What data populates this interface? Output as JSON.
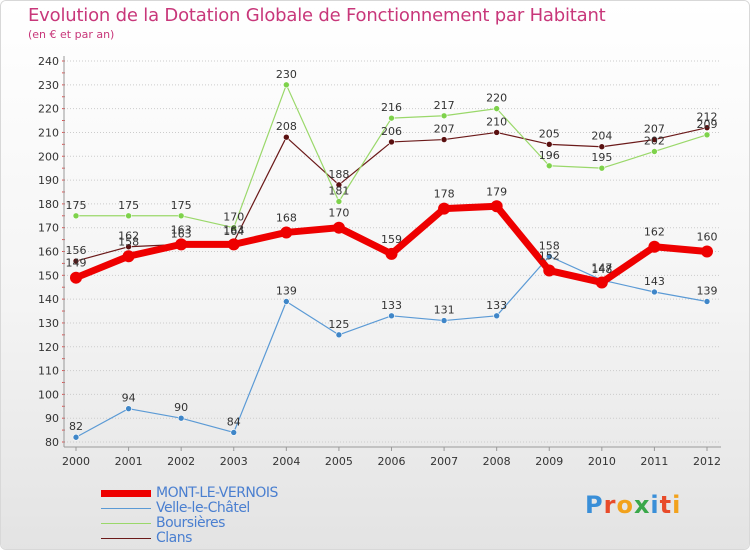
{
  "header": {
    "title": "Evolution de la Dotation Globale de Fonctionnement par Habitant",
    "subtitle": "(en € et par an)"
  },
  "logo": {
    "text": "Proxiti",
    "colors": [
      "#3a8fd8",
      "#e84b2a",
      "#f2a21c",
      "#3aa84a",
      "#3a8fd8",
      "#e84b2a",
      "#f2a21c"
    ]
  },
  "colors": {
    "title": "#c8377a",
    "axis_text": "#333333",
    "grid": "#cccccc",
    "background_top": "#ffffff",
    "background_bottom": "#e6e6e6"
  },
  "chart_data": {
    "type": "line",
    "title": "Evolution de la Dotation Globale de Fonctionnement par Habitant",
    "subtitle": "(en € et par an)",
    "x": [
      "2000",
      "2001",
      "2002",
      "2003",
      "2004",
      "2005",
      "2006",
      "2007",
      "2008",
      "2009",
      "2010",
      "2011",
      "2012"
    ],
    "ylim": [
      80,
      240
    ],
    "yticks": [
      80,
      90,
      100,
      110,
      120,
      130,
      140,
      150,
      160,
      170,
      180,
      190,
      200,
      210,
      220,
      230,
      240
    ],
    "grid": "horizontal",
    "legend": "bottom-left",
    "series": [
      {
        "name": "Clans",
        "values": [
          156,
          162,
          163,
          164,
          208,
          188,
          206,
          207,
          210,
          205,
          204,
          207,
          212
        ],
        "color": "#6b1a1a",
        "marker_color": "#5a1010",
        "width": 1.2
      },
      {
        "name": "Boursières",
        "values": [
          175,
          175,
          175,
          170,
          230,
          181,
          216,
          217,
          220,
          196,
          195,
          202,
          209
        ],
        "color": "#9ad86a",
        "marker_color": "#7ed24b",
        "width": 1.2
      },
      {
        "name": "Velle-le-Châtel",
        "values": [
          82,
          94,
          90,
          84,
          139,
          125,
          133,
          131,
          133,
          158,
          148,
          143,
          139
        ],
        "color": "#5b9ad5",
        "marker_color": "#3f86c8",
        "width": 1.2
      },
      {
        "name": "MONT-LE-VERNOIS",
        "values": [
          149,
          158,
          163,
          163,
          168,
          170,
          159,
          178,
          179,
          152,
          147,
          162,
          160
        ],
        "color": "#ee0000",
        "marker_color": "#ee0000",
        "width": 7
      }
    ],
    "data_labels": [
      {
        "x": "2000",
        "text": "156",
        "series": "Clans"
      },
      {
        "x": "2001",
        "text": "162",
        "series": "Clans"
      },
      {
        "x": "2002",
        "text": "163",
        "series": "Clans"
      },
      {
        "x": "2003",
        "text": "164",
        "series": "Clans"
      },
      {
        "x": "2004",
        "text": "208",
        "series": "Clans"
      },
      {
        "x": "2005",
        "text": "188",
        "series": "Clans"
      },
      {
        "x": "2006",
        "text": "206",
        "series": "Clans"
      },
      {
        "x": "2007",
        "text": "207",
        "series": "Clans"
      },
      {
        "x": "2008",
        "text": "210",
        "series": "Clans"
      },
      {
        "x": "2009",
        "text": "205",
        "series": "Clans"
      },
      {
        "x": "2010",
        "text": "204",
        "series": "Clans"
      },
      {
        "x": "2011",
        "text": "207",
        "series": "Clans"
      },
      {
        "x": "2012",
        "text": "212",
        "series": "Clans"
      },
      {
        "x": "2000",
        "text": "175",
        "series": "Boursières"
      },
      {
        "x": "2001",
        "text": "175",
        "series": "Boursières"
      },
      {
        "x": "2002",
        "text": "175",
        "series": "Boursières"
      },
      {
        "x": "2003",
        "text": "170",
        "series": "Boursières"
      },
      {
        "x": "2004",
        "text": "230",
        "series": "Boursières"
      },
      {
        "x": "2005",
        "text": "181",
        "series": "Boursières"
      },
      {
        "x": "2006",
        "text": "216",
        "series": "Boursières"
      },
      {
        "x": "2007",
        "text": "217",
        "series": "Boursières"
      },
      {
        "x": "2008",
        "text": "220",
        "series": "Boursières"
      },
      {
        "x": "2009",
        "text": "196",
        "series": "Boursières"
      },
      {
        "x": "2010",
        "text": "195",
        "series": "Boursières"
      },
      {
        "x": "2011",
        "text": "202",
        "series": "Boursières"
      },
      {
        "x": "2012",
        "text": "209",
        "series": "Boursières"
      },
      {
        "x": "2000",
        "text": "82",
        "series": "Velle-le-Châtel"
      },
      {
        "x": "2001",
        "text": "94",
        "series": "Velle-le-Châtel"
      },
      {
        "x": "2002",
        "text": "90",
        "series": "Velle-le-Châtel"
      },
      {
        "x": "2003",
        "text": "84",
        "series": "Velle-le-Châtel"
      },
      {
        "x": "2004",
        "text": "139",
        "series": "Velle-le-Châtel"
      },
      {
        "x": "2005",
        "text": "125",
        "series": "Velle-le-Châtel"
      },
      {
        "x": "2006",
        "text": "133",
        "series": "Velle-le-Châtel"
      },
      {
        "x": "2007",
        "text": "131",
        "series": "Velle-le-Châtel"
      },
      {
        "x": "2008",
        "text": "133",
        "series": "Velle-le-Châtel"
      },
      {
        "x": "2009",
        "text": "158",
        "series": "Velle-le-Châtel"
      },
      {
        "x": "2010",
        "text": "148",
        "series": "Velle-le-Châtel"
      },
      {
        "x": "2011",
        "text": "143",
        "series": "Velle-le-Châtel"
      },
      {
        "x": "2012",
        "text": "139",
        "series": "Velle-le-Châtel"
      },
      {
        "x": "2000",
        "text": "149",
        "series": "MONT-LE-VERNOIS"
      },
      {
        "x": "2001",
        "text": "158",
        "series": "MONT-LE-VERNOIS"
      },
      {
        "x": "2002",
        "text": "163",
        "series": "MONT-LE-VERNOIS"
      },
      {
        "x": "2003",
        "text": "163",
        "series": "MONT-LE-VERNOIS"
      },
      {
        "x": "2004",
        "text": "168",
        "series": "MONT-LE-VERNOIS"
      },
      {
        "x": "2005",
        "text": "170",
        "series": "MONT-LE-VERNOIS"
      },
      {
        "x": "2006",
        "text": "159",
        "series": "MONT-LE-VERNOIS"
      },
      {
        "x": "2007",
        "text": "178",
        "series": "MONT-LE-VERNOIS"
      },
      {
        "x": "2008",
        "text": "179",
        "series": "MONT-LE-VERNOIS"
      },
      {
        "x": "2009",
        "text": "152",
        "series": "MONT-LE-VERNOIS"
      },
      {
        "x": "2010",
        "text": "147",
        "series": "MONT-LE-VERNOIS"
      },
      {
        "x": "2011",
        "text": "162",
        "series": "MONT-LE-VERNOIS"
      },
      {
        "x": "2012",
        "text": "160",
        "series": "MONT-LE-VERNOIS"
      }
    ]
  },
  "legend": {
    "items": [
      {
        "label": "MONT-LE-VERNOIS",
        "color": "#ee0000",
        "text_color": "#4a7fd0"
      },
      {
        "label": "Velle-le-Châtel",
        "color": "#5b9ad5",
        "text_color": "#4a7fd0"
      },
      {
        "label": "Boursières",
        "color": "#9ad86a",
        "text_color": "#4a7fd0"
      },
      {
        "label": "Clans",
        "color": "#6b1a1a",
        "text_color": "#4a7fd0"
      }
    ]
  }
}
